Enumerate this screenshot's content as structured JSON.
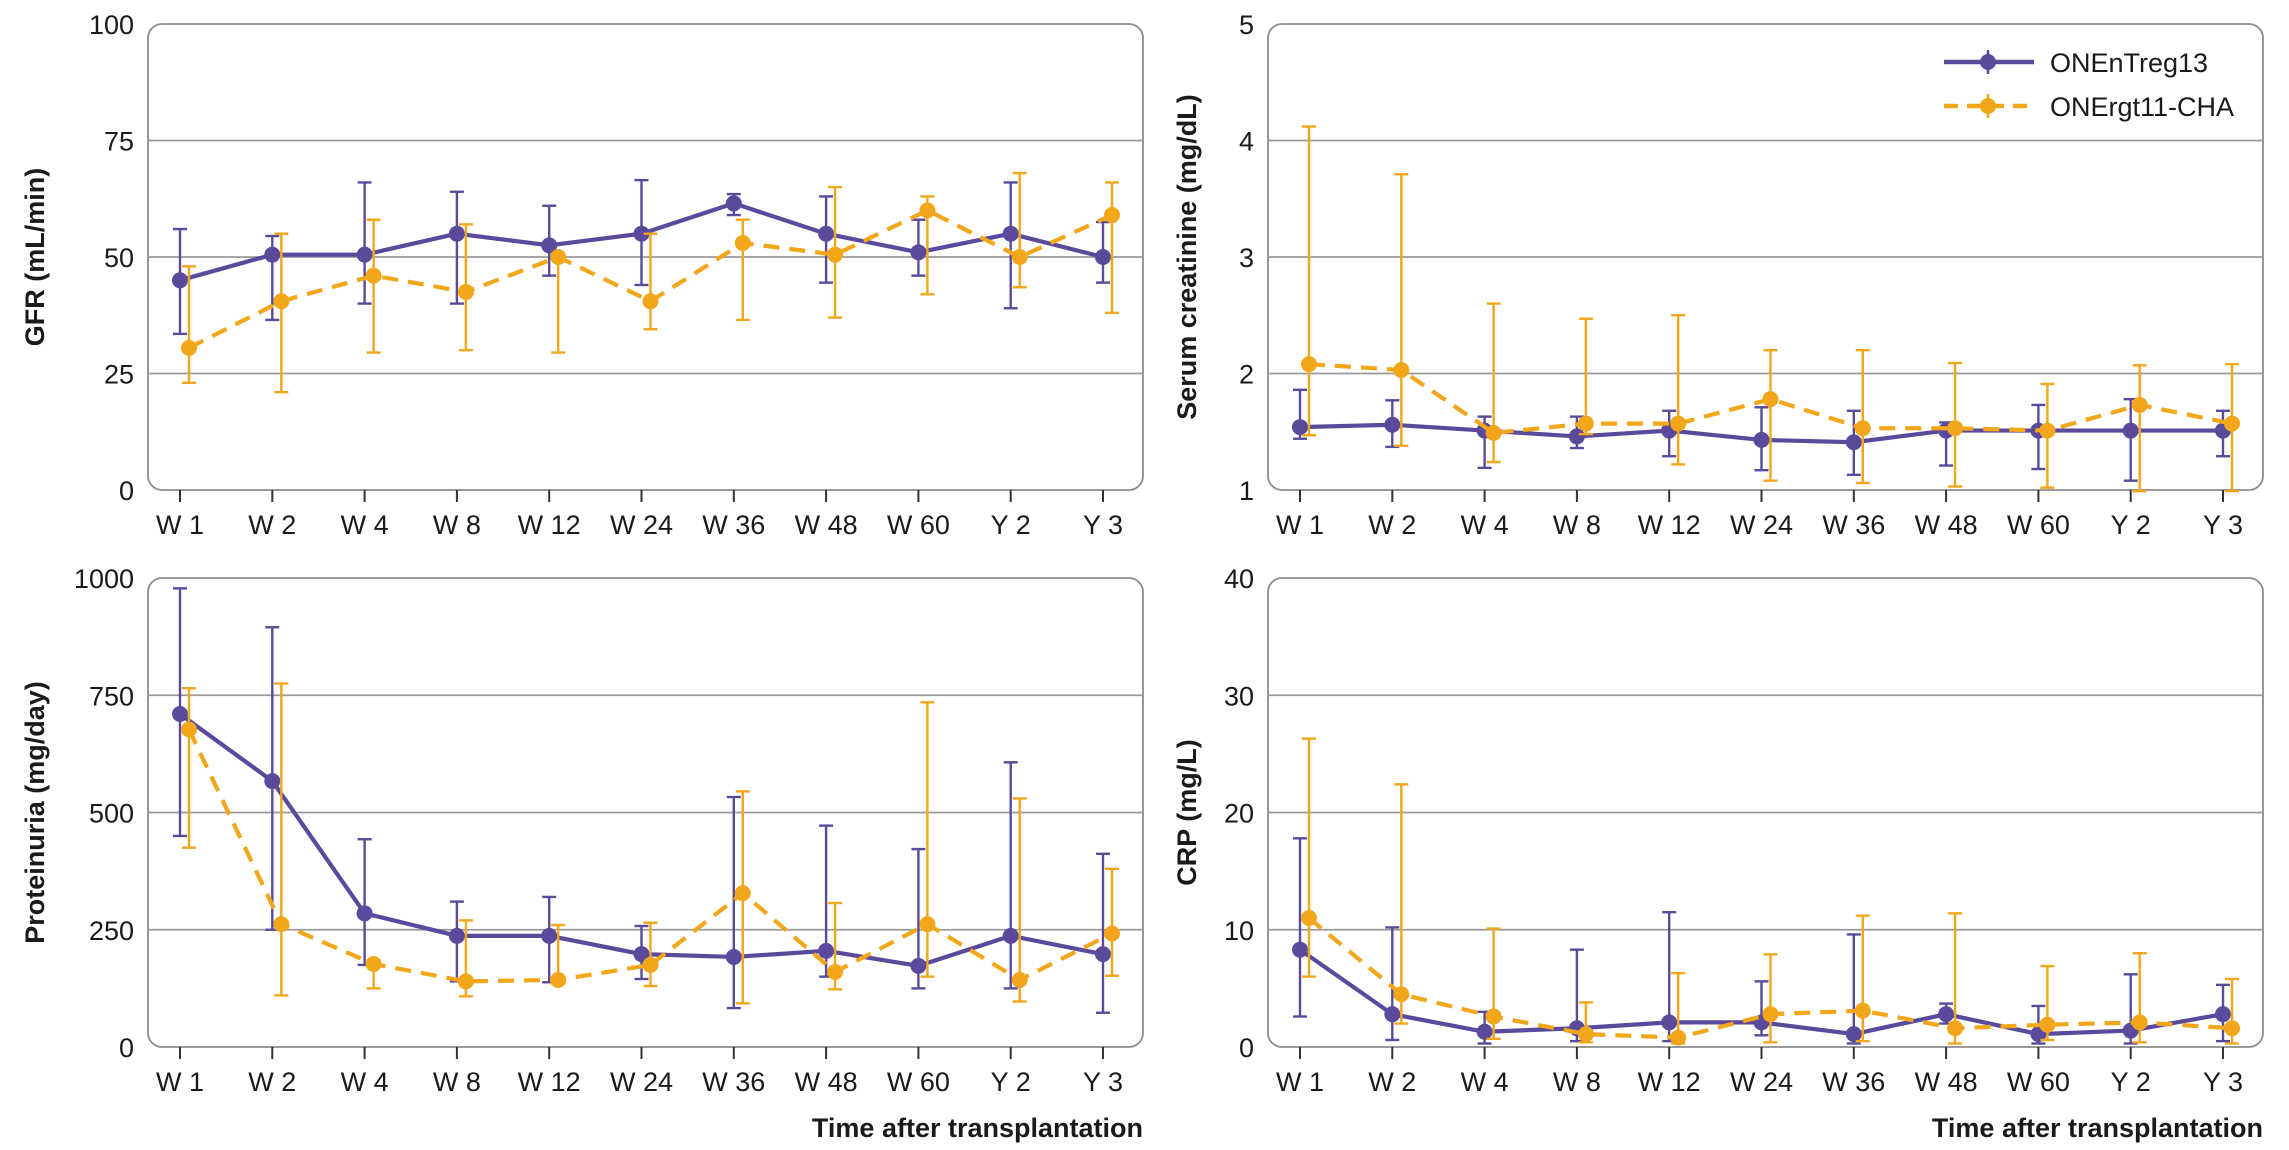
{
  "colors": {
    "ONEnTreg13": "#5b4a9b",
    "ONErgt11-CHA": "#f2a71b",
    "grid": "#9a9a9a",
    "frame": "#8c8c8c"
  },
  "legend": {
    "placement": "top-right",
    "entries": [
      "ONEnTreg13",
      "ONErgt11-CHA"
    ]
  },
  "chart_data": [
    {
      "type": "line",
      "ylabel": "GFR (mL/min)",
      "xlabel": "",
      "ylim": [
        0,
        100
      ],
      "yticks": [
        0,
        25,
        50,
        75,
        100
      ],
      "categories": [
        "W 1",
        "W 2",
        "W 4",
        "W 8",
        "W 12",
        "W 24",
        "W 36",
        "W 48",
        "W 60",
        "Y 2",
        "Y 3"
      ],
      "series": [
        {
          "name": "ONEnTreg13",
          "values": [
            45,
            50.5,
            50.5,
            55,
            52.5,
            55,
            61.5,
            55,
            51,
            55,
            50
          ],
          "err_low": [
            33.5,
            36.5,
            40,
            40,
            46,
            44,
            59,
            44.5,
            46,
            39,
            44.5
          ],
          "err_high": [
            56,
            54.5,
            66,
            64,
            61,
            66.5,
            63.5,
            63,
            58,
            66,
            57.5
          ]
        },
        {
          "name": "ONErgt11-CHA",
          "values": [
            30.5,
            40.5,
            46,
            42.5,
            50,
            40.5,
            53,
            50.5,
            60,
            50,
            59
          ],
          "err_low": [
            23,
            21,
            29.5,
            30,
            29.5,
            34.5,
            36.5,
            37,
            42,
            43.5,
            38
          ],
          "err_high": [
            48,
            55,
            58,
            57,
            50,
            55,
            58,
            65,
            63,
            68,
            66
          ]
        }
      ]
    },
    {
      "type": "line",
      "ylabel": "Serum creatinine (mg/dL)",
      "xlabel": "",
      "ylim": [
        1,
        5
      ],
      "yticks": [
        1,
        2,
        3,
        4,
        5
      ],
      "categories": [
        "W 1",
        "W 2",
        "W 4",
        "W 8",
        "W 12",
        "W 24",
        "W 36",
        "W 48",
        "W 60",
        "Y 2",
        "Y 3"
      ],
      "series": [
        {
          "name": "ONEnTreg13",
          "values": [
            1.54,
            1.56,
            1.51,
            1.46,
            1.51,
            1.43,
            1.41,
            1.51,
            1.51,
            1.51,
            1.51
          ],
          "err_low": [
            1.44,
            1.37,
            1.19,
            1.36,
            1.29,
            1.17,
            1.13,
            1.21,
            1.18,
            1.08,
            1.29
          ],
          "err_high": [
            1.86,
            1.77,
            1.63,
            1.63,
            1.68,
            1.71,
            1.68,
            1.58,
            1.73,
            1.78,
            1.68
          ]
        },
        {
          "name": "ONErgt11-CHA",
          "values": [
            2.08,
            2.03,
            1.49,
            1.57,
            1.57,
            1.78,
            1.53,
            1.53,
            1.51,
            1.73,
            1.57
          ],
          "err_low": [
            1.47,
            1.38,
            1.24,
            1.48,
            1.22,
            1.08,
            1.06,
            1.03,
            1.02,
            0.99,
            0.99
          ],
          "err_high": [
            4.12,
            3.71,
            2.6,
            2.47,
            2.5,
            2.2,
            2.2,
            2.09,
            1.91,
            2.07,
            2.08
          ]
        }
      ]
    },
    {
      "type": "line",
      "ylabel": "Proteinuria (mg/day)",
      "xlabel": "Time after transplantation",
      "ylim": [
        0,
        1000
      ],
      "yticks": [
        0,
        250,
        500,
        750,
        1000
      ],
      "categories": [
        "W 1",
        "W 2",
        "W 4",
        "W 8",
        "W 12",
        "W 24",
        "W 36",
        "W 48",
        "W 60",
        "Y 2",
        "Y 3"
      ],
      "series": [
        {
          "name": "ONEnTreg13",
          "values": [
            710,
            567,
            285,
            237,
            237,
            198,
            192,
            205,
            173,
            237,
            198
          ],
          "err_low": [
            450,
            250,
            175,
            140,
            138,
            145,
            83,
            150,
            125,
            125,
            73
          ],
          "err_high": [
            978,
            895,
            443,
            310,
            320,
            258,
            533,
            472,
            422,
            607,
            412
          ]
        },
        {
          "name": "ONErgt11-CHA",
          "values": [
            677,
            262,
            177,
            140,
            143,
            175,
            328,
            160,
            262,
            143,
            242
          ],
          "err_low": [
            425,
            110,
            125,
            108,
            135,
            130,
            93,
            123,
            150,
            97,
            152
          ],
          "err_high": [
            765,
            775,
            185,
            270,
            260,
            265,
            545,
            307,
            735,
            530,
            380
          ]
        }
      ]
    },
    {
      "type": "line",
      "ylabel": "CRP (mg/L)",
      "xlabel": "Time after transplantation",
      "ylim": [
        0,
        40
      ],
      "yticks": [
        0,
        10,
        20,
        30,
        40
      ],
      "categories": [
        "W 1",
        "W 2",
        "W 4",
        "W 8",
        "W 12",
        "W 24",
        "W 36",
        "W 48",
        "W 60",
        "Y 2",
        "Y 3"
      ],
      "series": [
        {
          "name": "ONEnTreg13",
          "values": [
            8.3,
            2.8,
            1.3,
            1.6,
            2.1,
            2.1,
            1.1,
            2.8,
            1.1,
            1.4,
            2.8
          ],
          "err_low": [
            2.6,
            0.6,
            0.3,
            0.5,
            0.5,
            1.0,
            0.3,
            2.0,
            0.3,
            0.3,
            0.5
          ],
          "err_high": [
            17.8,
            10.2,
            3.0,
            8.3,
            11.5,
            5.6,
            9.6,
            3.7,
            3.5,
            6.2,
            5.3
          ]
        },
        {
          "name": "ONErgt11-CHA",
          "values": [
            11.0,
            4.5,
            2.6,
            1.1,
            0.8,
            2.8,
            3.1,
            1.6,
            1.9,
            2.1,
            1.6
          ],
          "err_low": [
            6.0,
            2.0,
            0.7,
            0.4,
            0.3,
            0.4,
            0.5,
            0.3,
            0.6,
            0.4,
            0.3
          ],
          "err_high": [
            26.3,
            22.4,
            10.1,
            3.8,
            6.3,
            7.9,
            11.2,
            11.4,
            6.9,
            8.0,
            5.8
          ]
        }
      ]
    }
  ]
}
